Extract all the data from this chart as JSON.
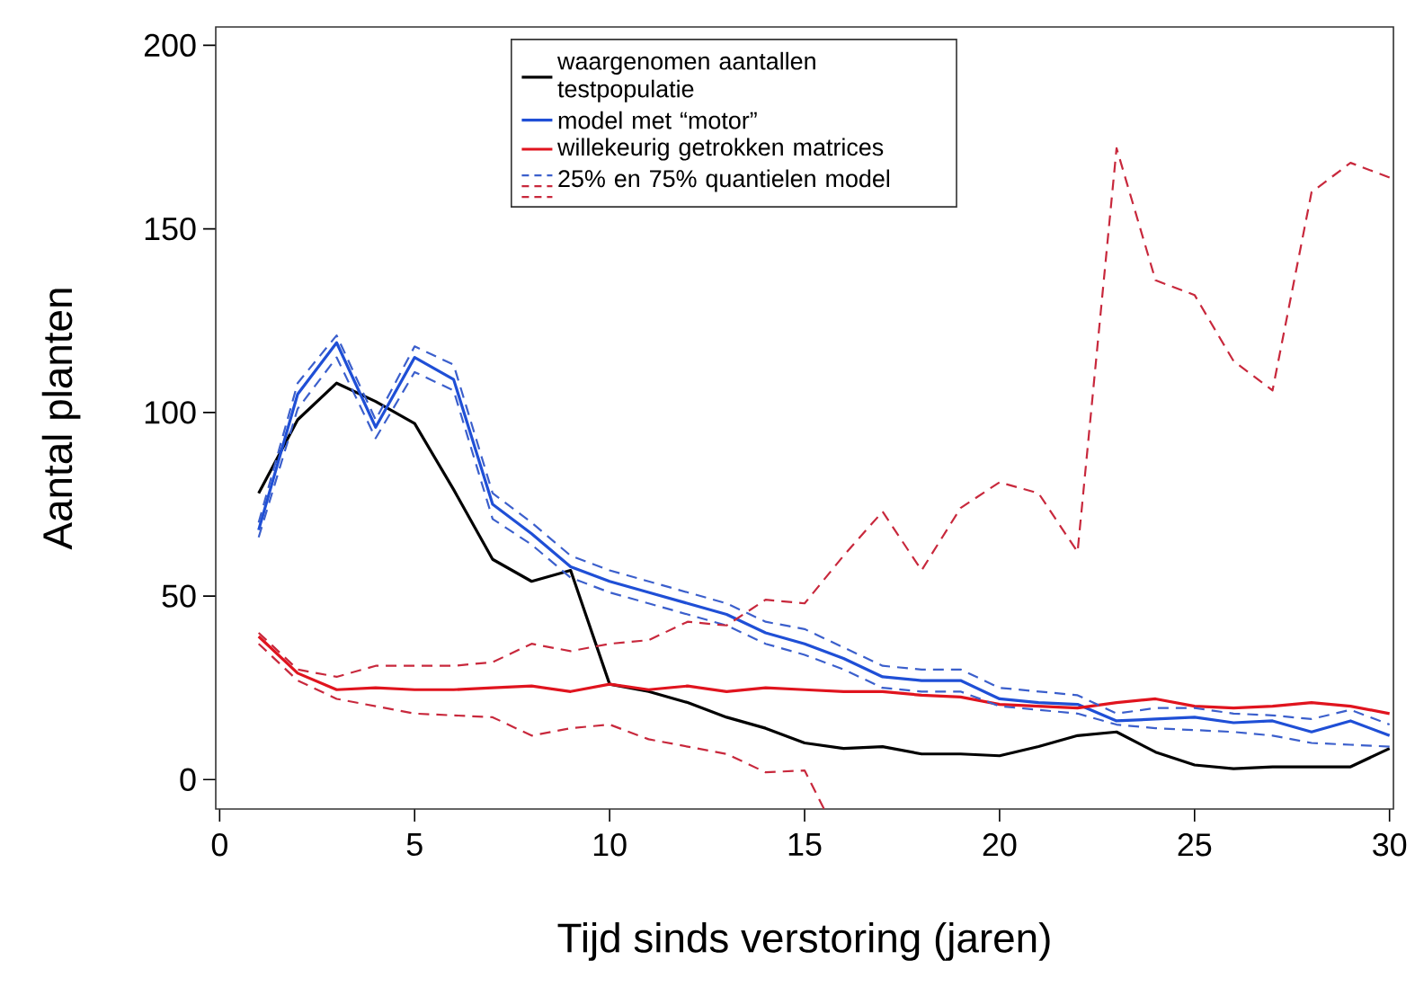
{
  "chart_data": {
    "type": "line",
    "xlabel": "Tijd sinds verstoring (jaren)",
    "ylabel": "Aantal planten",
    "x": [
      1,
      2,
      3,
      4,
      5,
      6,
      7,
      8,
      9,
      10,
      11,
      12,
      13,
      14,
      15,
      16,
      17,
      18,
      19,
      20,
      21,
      22,
      23,
      24,
      25,
      26,
      27,
      28,
      29,
      30
    ],
    "xlim": [
      -0.1,
      30.1
    ],
    "ylim": [
      -8,
      205
    ],
    "xticks": [
      0,
      5,
      10,
      15,
      20,
      25,
      30
    ],
    "yticks": [
      0,
      50,
      100,
      150,
      200
    ],
    "legend": "top",
    "line_style": "solid",
    "series": [
      {
        "name": "waargenomen aantallen testpopulatie",
        "color": "#000000",
        "values": [
          78,
          98,
          108,
          103,
          97,
          79,
          60,
          54,
          57,
          26,
          24,
          21,
          17,
          14,
          10,
          8.5,
          9,
          7,
          7,
          6.5,
          9,
          12,
          13,
          7.5,
          4,
          3,
          3.5,
          3.5,
          3.5,
          8.5
        ]
      },
      {
        "name": "model met “motor”",
        "color": "#1f4fd6",
        "values": [
          68,
          105,
          119,
          96,
          115,
          109,
          75,
          67,
          58,
          54,
          51,
          48,
          45,
          40,
          37,
          33,
          28,
          27,
          27,
          22,
          21,
          20.5,
          16,
          16.5,
          17,
          15.5,
          16,
          13,
          16,
          12
        ]
      },
      {
        "name": "willekeurig getrokken matrices",
        "color": "#e0141e",
        "values": [
          39,
          29,
          24.5,
          25,
          24.5,
          24.5,
          25,
          25.5,
          24,
          26,
          24.5,
          25.5,
          24,
          25,
          24.5,
          24,
          24,
          23,
          22.5,
          20.5,
          20,
          19.5,
          21,
          22,
          20,
          19.5,
          20,
          21,
          20,
          18
        ]
      },
      {
        "name": "25% en 75% quantielen model",
        "color": "#3b5fcc",
        "line_style": "dashed",
        "values": [
          70,
          108,
          121,
          98,
          118,
          113,
          78,
          70,
          61,
          57,
          54,
          51,
          48,
          43,
          41,
          36,
          31,
          30,
          30,
          25,
          24,
          23,
          18,
          19.5,
          19.5,
          18,
          17.5,
          16.5,
          19,
          15
        ]
      },
      {
        "color": "#3b5fcc",
        "line_style": "dashed",
        "values": [
          66,
          101,
          115,
          93,
          111,
          106,
          71,
          64,
          55,
          51,
          48,
          45,
          42,
          37,
          34,
          30,
          25,
          24,
          24,
          20,
          19,
          18,
          15,
          14,
          13.5,
          13,
          12,
          10,
          9.5,
          9
        ]
      },
      {
        "color": "#c8283c",
        "line_style": "dashed",
        "values": [
          40,
          30,
          28,
          31,
          31,
          31,
          32,
          37,
          35,
          37,
          38,
          43,
          42,
          49,
          48,
          61,
          73,
          57,
          74,
          81,
          78,
          62,
          172,
          136,
          132,
          114,
          106,
          160,
          168,
          164
        ]
      },
      {
        "color": "#c8283c",
        "line_style": "dashed",
        "x": [
          1,
          2,
          3,
          4,
          5,
          6,
          7,
          8,
          9,
          10,
          11,
          12,
          13,
          14,
          15,
          15.5
        ],
        "values": [
          37,
          27,
          22,
          20,
          18,
          17.5,
          17,
          12,
          14,
          15,
          11,
          9,
          7,
          2,
          2.5,
          -8
        ]
      }
    ]
  }
}
